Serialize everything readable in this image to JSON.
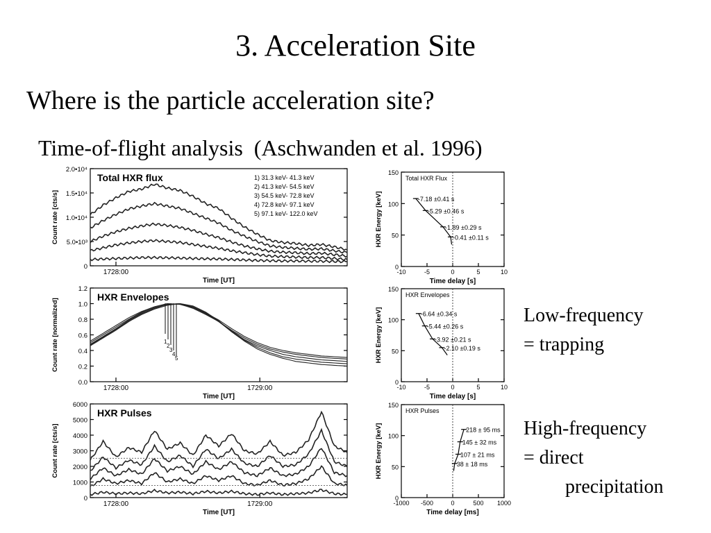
{
  "slide": {
    "title": "3. Acceleration Site",
    "question": "Where is the particle acceleration site?",
    "subtitle": "Time-of-flight analysis  (Aschwanden et al. 1996)",
    "note_low": [
      "Low-frequency",
      "= trapping"
    ],
    "note_high": [
      "High-frequency",
      "= direct",
      "precipitation"
    ]
  },
  "chart_data": [
    {
      "type": "line",
      "panel": "total-hxr-flux",
      "title": "Total HXR flux",
      "xlabel": "Time [UT]",
      "ylabel": "Count rate [cts/s]",
      "xticks": [
        "1728:00"
      ],
      "yticks": [
        "0",
        "5.0•10³",
        "1.0•10⁴",
        "1.5•10⁴",
        "2.0•10⁴"
      ],
      "ylim": [
        0,
        20000
      ],
      "legend": [
        "1)   31.3 keV-   41.3 keV",
        "2)   41.3 keV-   54.5 keV",
        "3)   54.5 keV-   72.8 keV",
        "4)   72.8 keV-   97.1 keV",
        "5)   97.1 keV-   122.0 keV"
      ],
      "legend_position": "top-right",
      "x": [
        0,
        0.05,
        0.1,
        0.15,
        0.2,
        0.25,
        0.3,
        0.35,
        0.4,
        0.45,
        0.5,
        0.55,
        0.6,
        0.65,
        0.7,
        0.75,
        0.8,
        0.85,
        0.9,
        0.95,
        1.0
      ],
      "series": [
        {
          "name": "1",
          "values": [
            10500,
            12500,
            14000,
            15300,
            15800,
            16800,
            16000,
            15500,
            14300,
            12800,
            11800,
            9800,
            8000,
            6500,
            5200,
            4800,
            4600,
            4200,
            4400,
            3900,
            3300
          ]
        },
        {
          "name": "2",
          "values": [
            7800,
            9300,
            10600,
            11700,
            12300,
            12800,
            12300,
            11800,
            10800,
            9800,
            8800,
            7300,
            6100,
            5000,
            4100,
            3800,
            3600,
            3400,
            3500,
            3100,
            2700
          ]
        },
        {
          "name": "3",
          "values": [
            5000,
            6100,
            7000,
            7700,
            8200,
            8600,
            8300,
            7900,
            7300,
            6500,
            5800,
            4900,
            4100,
            3500,
            3000,
            2800,
            2700,
            2500,
            2600,
            2300,
            2000
          ]
        },
        {
          "name": "4",
          "values": [
            3100,
            3700,
            4300,
            4700,
            5000,
            5200,
            5000,
            4800,
            4400,
            4000,
            3600,
            3100,
            2700,
            2300,
            2000,
            1900,
            1800,
            1700,
            1700,
            1500,
            1300
          ]
        },
        {
          "name": "5",
          "values": [
            1300,
            1400,
            1500,
            1600,
            1700,
            1700,
            1650,
            1600,
            1500,
            1450,
            1400,
            1300,
            1200,
            1100,
            1050,
            1000,
            1000,
            950,
            950,
            900,
            850
          ]
        }
      ]
    },
    {
      "type": "scatter",
      "panel": "total-hxr-flux-delay",
      "title": "Total HXR Flux",
      "xlabel": "Time delay [s]",
      "ylabel": "HXR Energy [keV]",
      "xlim": [
        -10,
        10
      ],
      "ylim": [
        0,
        150
      ],
      "xticks": [
        "-10",
        "-5",
        "0",
        "5",
        "10"
      ],
      "yticks": [
        "0",
        "50",
        "100",
        "150"
      ],
      "points": [
        {
          "x": -7.18,
          "y": 108,
          "label": "-7.18 ±0.41 s"
        },
        {
          "x": -5.29,
          "y": 89,
          "label": "-5.29 ±0.46 s"
        },
        {
          "x": -1.89,
          "y": 63,
          "label": "-1.89 ±0.29 s"
        },
        {
          "x": -0.41,
          "y": 47,
          "label": "-0.41 ±0.11 s"
        }
      ]
    },
    {
      "type": "line",
      "panel": "hxr-envelopes",
      "title": "HXR Envelopes",
      "xlabel": "Time [UT]",
      "ylabel": "Count rate [normalized]",
      "xticks": [
        "1728:00",
        "1729:00"
      ],
      "yticks": [
        "0.0",
        "0.2",
        "0.4",
        "0.6",
        "0.8",
        "1.0",
        "1.2"
      ],
      "ylim": [
        0,
        1.2
      ],
      "curve_labels": [
        "1",
        "2",
        "3",
        "4",
        "5"
      ],
      "x": [
        0,
        0.05,
        0.1,
        0.15,
        0.2,
        0.25,
        0.3,
        0.35,
        0.4,
        0.45,
        0.5,
        0.55,
        0.6,
        0.65,
        0.7,
        0.75,
        0.8,
        0.85,
        0.9,
        0.95,
        1.0
      ],
      "series": [
        {
          "name": "1",
          "values": [
            0.52,
            0.62,
            0.72,
            0.82,
            0.9,
            0.96,
            1.0,
            0.99,
            0.95,
            0.88,
            0.79,
            0.68,
            0.58,
            0.5,
            0.44,
            0.4,
            0.37,
            0.35,
            0.33,
            0.32,
            0.31
          ]
        },
        {
          "name": "2",
          "values": [
            0.5,
            0.6,
            0.7,
            0.8,
            0.89,
            0.96,
            1.0,
            0.99,
            0.94,
            0.86,
            0.77,
            0.66,
            0.56,
            0.48,
            0.42,
            0.38,
            0.35,
            0.33,
            0.31,
            0.3,
            0.29
          ]
        },
        {
          "name": "3",
          "values": [
            0.48,
            0.58,
            0.68,
            0.79,
            0.88,
            0.95,
            0.99,
            1.0,
            0.95,
            0.87,
            0.77,
            0.65,
            0.54,
            0.46,
            0.4,
            0.35,
            0.32,
            0.3,
            0.28,
            0.27,
            0.26
          ]
        },
        {
          "name": "4",
          "values": [
            0.47,
            0.57,
            0.67,
            0.78,
            0.87,
            0.94,
            0.99,
            1.0,
            0.96,
            0.88,
            0.77,
            0.64,
            0.53,
            0.44,
            0.37,
            0.32,
            0.29,
            0.27,
            0.25,
            0.24,
            0.23
          ]
        },
        {
          "name": "5",
          "values": [
            0.46,
            0.56,
            0.66,
            0.77,
            0.86,
            0.93,
            0.98,
            1.0,
            0.97,
            0.89,
            0.78,
            0.64,
            0.52,
            0.42,
            0.35,
            0.3,
            0.26,
            0.24,
            0.22,
            0.21,
            0.2
          ]
        }
      ]
    },
    {
      "type": "scatter",
      "panel": "hxr-envelopes-delay",
      "title": "HXR Envelopes",
      "xlabel": "Time delay [s]",
      "ylabel": "HXR Energy [keV]",
      "xlim": [
        -10,
        10
      ],
      "ylim": [
        0,
        150
      ],
      "xticks": [
        "-10",
        "-5",
        "0",
        "5",
        "10"
      ],
      "yticks": [
        "0",
        "50",
        "100",
        "150"
      ],
      "points": [
        {
          "x": -6.64,
          "y": 110,
          "label": "-6.64 ±0.34 s"
        },
        {
          "x": -5.44,
          "y": 90,
          "label": "-5.44 ±0.26 s"
        },
        {
          "x": -3.92,
          "y": 69,
          "label": "-3.92 ±0.21 s"
        },
        {
          "x": -2.1,
          "y": 55,
          "label": "-2.10 ±0.19 s"
        }
      ]
    },
    {
      "type": "line",
      "panel": "hxr-pulses",
      "title": "HXR Pulses",
      "xlabel": "Time [UT]",
      "ylabel": "Count rate [cts/s]",
      "xticks": [
        "1728:00",
        "1729:00"
      ],
      "yticks": [
        "0",
        "1000",
        "2000",
        "3000",
        "4000",
        "5000",
        "6000"
      ],
      "ylim": [
        0,
        6000
      ],
      "x": [
        0,
        0.05,
        0.1,
        0.15,
        0.2,
        0.25,
        0.3,
        0.35,
        0.4,
        0.45,
        0.5,
        0.55,
        0.6,
        0.65,
        0.7,
        0.75,
        0.8,
        0.85,
        0.9,
        0.95,
        1.0
      ],
      "series": [
        {
          "name": "1",
          "values": [
            2400,
            3600,
            2600,
            3200,
            2900,
            4300,
            3100,
            3500,
            2700,
            4000,
            3300,
            4100,
            3000,
            2800,
            3600,
            2700,
            2900,
            3700,
            5500,
            3300,
            2900
          ]
        },
        {
          "name": "2",
          "values": [
            1700,
            2600,
            1900,
            2400,
            2100,
            3300,
            2300,
            2700,
            2000,
            3100,
            2500,
            3100,
            2200,
            2000,
            2700,
            2000,
            2100,
            2800,
            4300,
            2300,
            2000
          ]
        },
        {
          "name": "3",
          "values": [
            1200,
            1900,
            1400,
            1800,
            1500,
            2500,
            1700,
            2000,
            1500,
            2300,
            1800,
            2300,
            1600,
            1400,
            1900,
            1400,
            1500,
            2000,
            3200,
            1600,
            1400
          ]
        },
        {
          "name": "4",
          "values": [
            700,
            1200,
            900,
            1100,
            900,
            1600,
            1000,
            1200,
            900,
            1400,
            1100,
            1400,
            900,
            800,
            1100,
            800,
            900,
            1200,
            2000,
            900,
            800
          ]
        },
        {
          "name": "5",
          "values": [
            200,
            350,
            250,
            300,
            250,
            450,
            300,
            350,
            250,
            400,
            300,
            400,
            250,
            200,
            300,
            200,
            250,
            300,
            500,
            250,
            200
          ]
        }
      ]
    },
    {
      "type": "scatter",
      "panel": "hxr-pulses-delay",
      "title": "HXR Pulses",
      "xlabel": "Time delay [ms]",
      "ylabel": "HXR Energy [keV]",
      "xlim": [
        -1000,
        1000
      ],
      "ylim": [
        0,
        150
      ],
      "xticks": [
        "-1000",
        "-500",
        "0",
        "500",
        "1000"
      ],
      "yticks": [
        "0",
        "50",
        "100",
        "150"
      ],
      "points": [
        {
          "x": 218,
          "y": 110,
          "label": "218 ± 95 ms"
        },
        {
          "x": 145,
          "y": 90,
          "label": "145 ± 32 ms"
        },
        {
          "x": 107,
          "y": 70,
          "label": "107 ± 21 ms"
        },
        {
          "x": 38,
          "y": 55,
          "label": "38  ± 18 ms"
        }
      ]
    }
  ]
}
